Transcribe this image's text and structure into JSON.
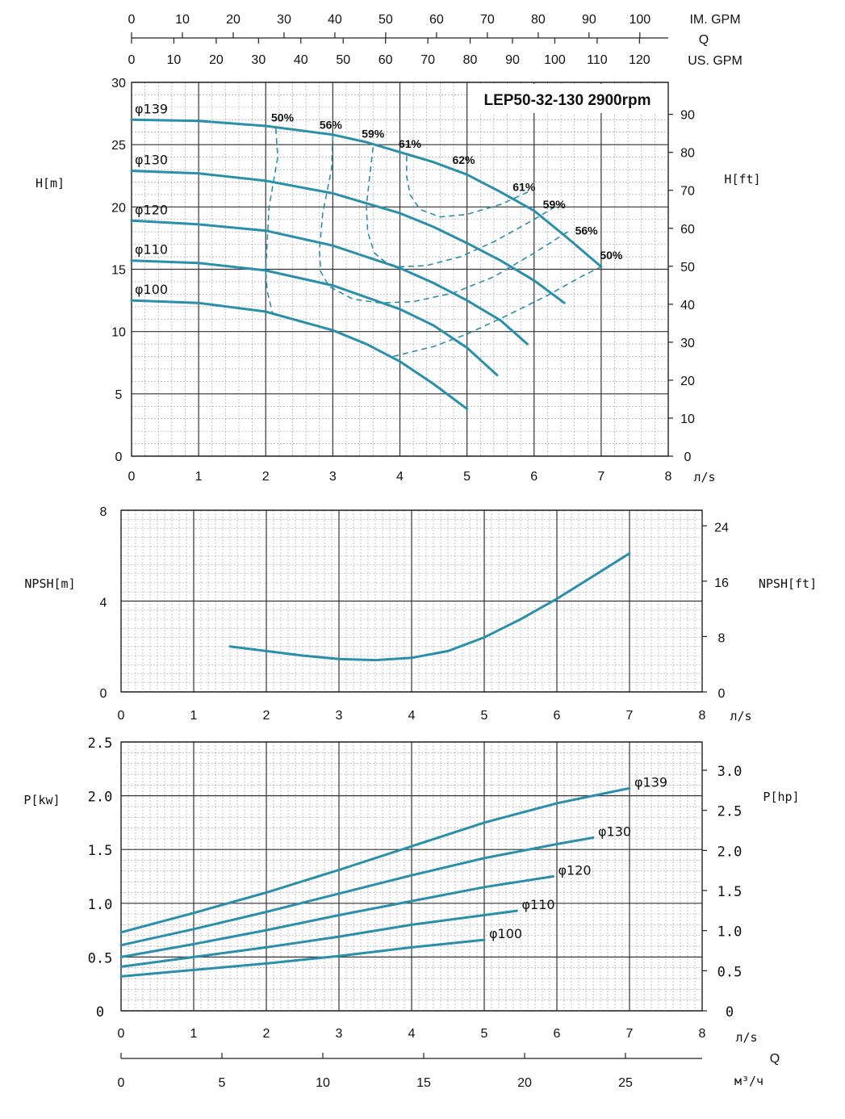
{
  "chart_data": [
    {
      "id": "head",
      "type": "line",
      "title": "LEP50-32-130 2900rpm",
      "xlabel": "л/s",
      "ylabel": "H[m]",
      "ylabel_right": "H[ft]",
      "xlim": [
        0,
        8
      ],
      "ylim": [
        0,
        30
      ],
      "x_ticks": [
        0,
        1,
        2,
        3,
        4,
        5,
        6,
        7,
        8
      ],
      "y_ticks": [
        0,
        5,
        10,
        15,
        20,
        25,
        30
      ],
      "y_right_ticks": [
        0,
        10,
        20,
        30,
        40,
        50,
        60,
        70,
        80,
        90
      ],
      "top_axes": {
        "q_label": "Q",
        "im_label": "IM. GPM",
        "im_ticks": [
          0,
          10,
          20,
          30,
          40,
          50,
          60,
          70,
          80,
          90,
          100
        ],
        "us_label": "US. GPM",
        "us_ticks": [
          0,
          10,
          20,
          30,
          40,
          50,
          60,
          70,
          80,
          90,
          100,
          110,
          120
        ]
      },
      "grid": true,
      "line_color": "#2a8fab",
      "series": [
        {
          "name": "φ139",
          "x": [
            0,
            1,
            2,
            3,
            3.5,
            4,
            4.5,
            5,
            5.5,
            6,
            6.5,
            7
          ],
          "y": [
            27,
            26.9,
            26.5,
            25.8,
            25.2,
            24.4,
            23.6,
            22.6,
            21.2,
            19.7,
            17.5,
            15.2
          ]
        },
        {
          "name": "φ130",
          "x": [
            0,
            1,
            2,
            3,
            4,
            4.5,
            5,
            5.5,
            6,
            6.45
          ],
          "y": [
            22.9,
            22.7,
            22.1,
            21.1,
            19.5,
            18.4,
            17.1,
            15.7,
            14.1,
            12.3
          ]
        },
        {
          "name": "φ120",
          "x": [
            0,
            1,
            2,
            3,
            4,
            4.5,
            5,
            5.5,
            5.9
          ],
          "y": [
            18.9,
            18.6,
            18.1,
            16.9,
            15.1,
            13.9,
            12.5,
            10.9,
            9.0
          ]
        },
        {
          "name": "φ110",
          "x": [
            0,
            1,
            2,
            3,
            4,
            4.5,
            5,
            5.45
          ],
          "y": [
            15.7,
            15.5,
            14.9,
            13.7,
            11.8,
            10.5,
            8.7,
            6.5
          ]
        },
        {
          "name": "φ100",
          "x": [
            0,
            1,
            2,
            3,
            3.5,
            4,
            4.5,
            5
          ],
          "y": [
            12.5,
            12.3,
            11.6,
            10.1,
            9.0,
            7.6,
            5.8,
            3.8
          ]
        }
      ],
      "efficiency_curves": [
        {
          "label": "50%",
          "label_right": "50%",
          "x": [
            2.15,
            2.18,
            2.05,
            2.0,
            2.02,
            2.1
          ],
          "y": [
            26.3,
            24,
            20,
            15,
            13.3,
            11.5
          ]
        },
        {
          "label": "56%",
          "label_right": "56%",
          "x": [
            3.0,
            2.98,
            2.85,
            2.8,
            2.82,
            2.95,
            3.3,
            3.7,
            4.2,
            4.8,
            5.4,
            6.0,
            6.5
          ],
          "y": [
            25.7,
            23,
            19.5,
            16.5,
            14.8,
            13.6,
            12.6,
            12.3,
            12.4,
            13.1,
            14.4,
            16.3,
            18.0
          ]
        },
        {
          "label": "59%",
          "label_right": "59%",
          "x": [
            3.6,
            3.55,
            3.5,
            3.52,
            3.62,
            3.8,
            4.0,
            4.4,
            4.9,
            5.4,
            6.0,
            6.4
          ],
          "y": [
            24.8,
            22.5,
            20.0,
            18.0,
            16.3,
            15.5,
            15.2,
            15.3,
            16.0,
            17.2,
            19.0,
            20.3
          ]
        },
        {
          "label": "61%",
          "label_right": "61%",
          "x": [
            4.1,
            4.1,
            4.15,
            4.3,
            4.6,
            5.0,
            5.5,
            5.95
          ],
          "y": [
            24.1,
            22.5,
            21.0,
            19.8,
            19.2,
            19.4,
            20.2,
            21.3
          ]
        },
        {
          "label": "62%",
          "x": [],
          "y": []
        }
      ],
      "npsh_dummy_hint": "",
      "efficiency_right_low": {
        "x": [
          3.9,
          4.5,
          5.0,
          5.6,
          6.2,
          6.7,
          7.0
        ],
        "y": [
          8.0,
          8.8,
          9.8,
          11.3,
          12.9,
          14.4,
          15.2
        ]
      }
    },
    {
      "id": "npsh",
      "type": "line",
      "xlabel": "л/s",
      "ylabel": "NPSH[m]",
      "ylabel_right": "NPSH[ft]",
      "xlim": [
        0,
        8
      ],
      "ylim": [
        0,
        8
      ],
      "x_ticks": [
        0,
        1,
        2,
        3,
        4,
        5,
        6,
        7,
        8
      ],
      "y_ticks": [
        0,
        4,
        8
      ],
      "y_right_ticks": [
        0,
        8,
        16,
        24
      ],
      "grid": true,
      "series": [
        {
          "name": "",
          "x": [
            1.5,
            2,
            2.5,
            3,
            3.5,
            4,
            4.5,
            5,
            5.5,
            6,
            6.5,
            7
          ],
          "y": [
            2.0,
            1.8,
            1.6,
            1.45,
            1.4,
            1.5,
            1.8,
            2.4,
            3.2,
            4.1,
            5.1,
            6.1
          ]
        }
      ]
    },
    {
      "id": "power",
      "type": "line",
      "xlabel": "л/s",
      "ylabel": "P[kw]",
      "ylabel_right": "P[hp]",
      "xlim": [
        0,
        8
      ],
      "ylim": [
        0,
        2.5
      ],
      "x_ticks": [
        0,
        1,
        2,
        3,
        4,
        5,
        6,
        7,
        8
      ],
      "y_ticks": [
        "0",
        "0.5",
        "1.0",
        "1.5",
        "2.0",
        "2.5"
      ],
      "y_right_ticks": [
        "0",
        "0.5",
        "1.0",
        "1.5",
        "2.0",
        "2.5",
        "3.0"
      ],
      "bottom_axis": {
        "q_label": "Q",
        "unit": "м³/ч",
        "ticks": [
          0,
          5,
          10,
          15,
          20,
          25
        ]
      },
      "grid": true,
      "series": [
        {
          "name": "φ139",
          "x": [
            0,
            1,
            2,
            3,
            4,
            5,
            6,
            7
          ],
          "y": [
            0.73,
            0.91,
            1.1,
            1.31,
            1.53,
            1.75,
            1.93,
            2.07
          ]
        },
        {
          "name": "φ130",
          "x": [
            0,
            1,
            2,
            3,
            4,
            5,
            6,
            6.5
          ],
          "y": [
            0.61,
            0.76,
            0.92,
            1.09,
            1.26,
            1.42,
            1.55,
            1.61
          ]
        },
        {
          "name": "φ120",
          "x": [
            0,
            1,
            2,
            3,
            4,
            5,
            5.95
          ],
          "y": [
            0.5,
            0.62,
            0.75,
            0.89,
            1.02,
            1.15,
            1.25
          ]
        },
        {
          "name": "φ110",
          "x": [
            0,
            1,
            2,
            3,
            4,
            5,
            5.45
          ],
          "y": [
            0.41,
            0.5,
            0.59,
            0.69,
            0.8,
            0.89,
            0.93
          ]
        },
        {
          "name": "φ100",
          "x": [
            0,
            1,
            2,
            3,
            4,
            5
          ],
          "y": [
            0.32,
            0.38,
            0.44,
            0.51,
            0.59,
            0.66
          ]
        }
      ]
    }
  ]
}
